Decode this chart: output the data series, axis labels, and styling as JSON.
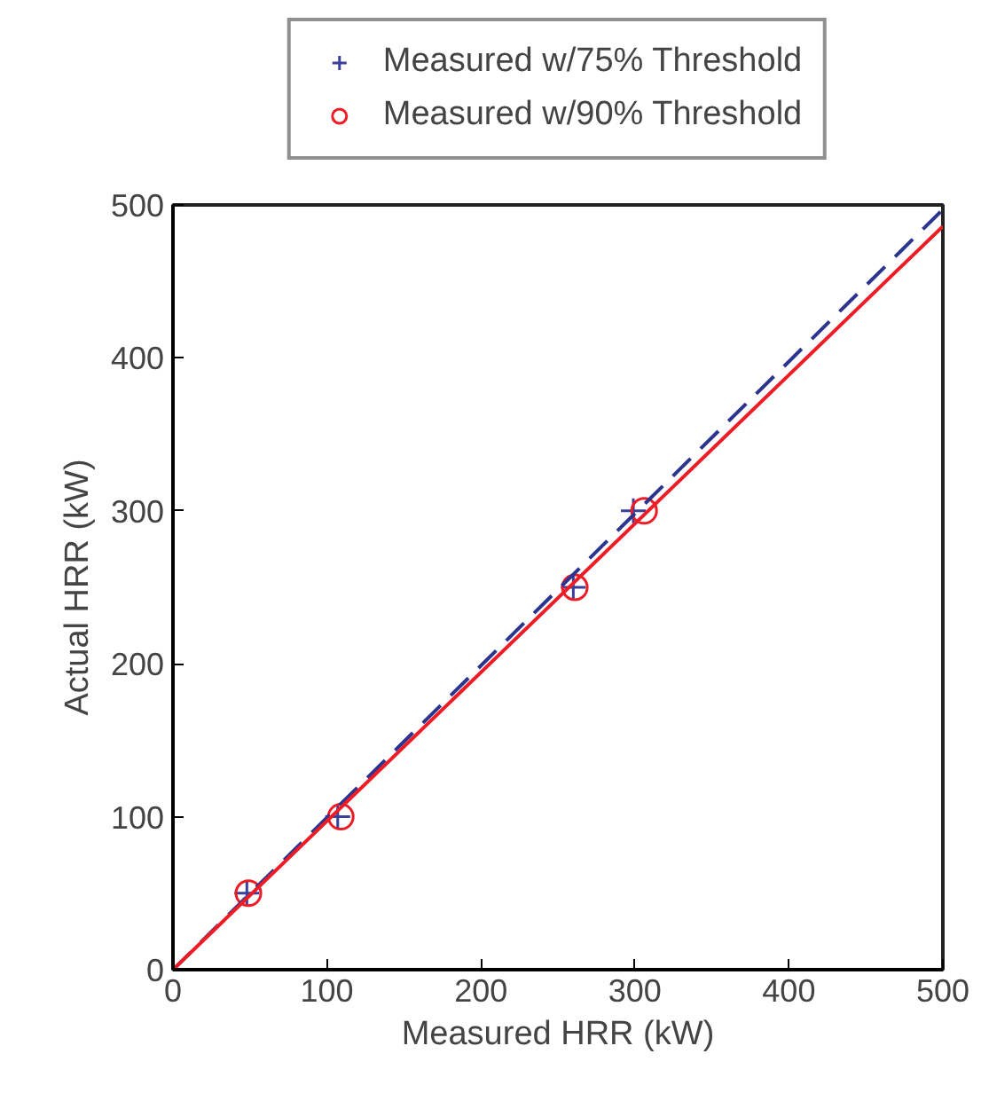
{
  "chart_data": {
    "type": "scatter",
    "xlabel": "Measured HRR (kW)",
    "ylabel": "Actual HRR (kW)",
    "xlim": [
      0,
      500
    ],
    "ylim": [
      0,
      500
    ],
    "xticks": [
      0,
      100,
      200,
      300,
      400,
      500
    ],
    "yticks": [
      0,
      100,
      200,
      300,
      400,
      500
    ],
    "grid": false,
    "legend": "top",
    "series": [
      {
        "name": "Measured w/75% Threshold",
        "type": "scatter",
        "marker": "cross",
        "color": "#3a3f9a",
        "x": [
          48,
          107,
          260,
          299
        ],
        "values": [
          50,
          100,
          250,
          300
        ]
      },
      {
        "name": "Measured w/90% Threshold",
        "type": "scatter",
        "marker": "circle",
        "color": "#ee1c25",
        "x": [
          49,
          109,
          261,
          306
        ],
        "values": [
          50,
          100,
          250,
          300
        ]
      },
      {
        "type": "line",
        "line_style": "dashed",
        "color": "#2b3590",
        "x": [
          0,
          500
        ],
        "values": [
          0,
          497
        ]
      },
      {
        "type": "line",
        "line_style": "solid",
        "color": "#ee1c25",
        "x": [
          0,
          500
        ],
        "values": [
          0,
          486
        ]
      }
    ]
  }
}
